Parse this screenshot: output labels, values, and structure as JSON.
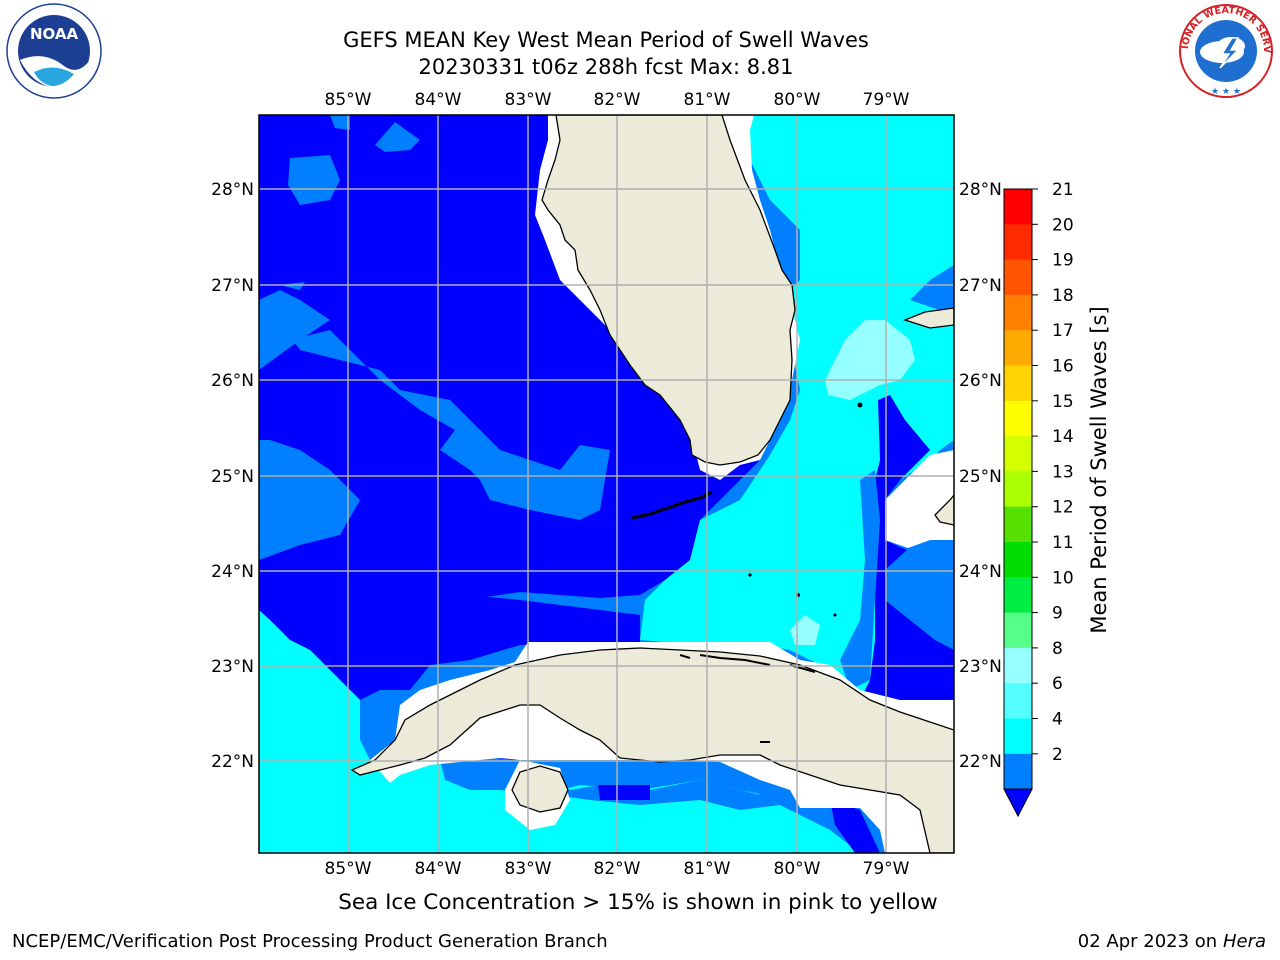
{
  "header": {
    "title_line1": "GEFS MEAN Key West Mean Period of Swell Waves",
    "title_line2": "20230331 t06z 288h fcst   Max: 8.81"
  },
  "map": {
    "lon_labels": [
      "85°W",
      "84°W",
      "83°W",
      "82°W",
      "81°W",
      "80°W",
      "79°W"
    ],
    "lat_labels": [
      "28°N",
      "27°N",
      "26°N",
      "25°N",
      "24°N",
      "23°N",
      "22°N"
    ],
    "colors": {
      "land": "#ecebd9",
      "band_2_4": "#0000ff",
      "band_4_6": "#0080ff",
      "band_6_8": "#00ffff",
      "band_8_9": "#96ffff",
      "grid": "#b0b0b0",
      "no_data": "#ffffff"
    }
  },
  "colorbar": {
    "label": "Mean Period of Swell Waves [s]",
    "ticks": [
      "21",
      "20",
      "19",
      "18",
      "17",
      "16",
      "15",
      "14",
      "13",
      "12",
      "11",
      "10",
      "9",
      "8",
      "6",
      "4",
      "2"
    ],
    "colors_top_to_bottom": [
      "#ff0000",
      "#ff2a00",
      "#ff5500",
      "#ff8000",
      "#ffaa00",
      "#ffd400",
      "#ffff00",
      "#d4ff00",
      "#aaff00",
      "#55e000",
      "#00dd00",
      "#00ee44",
      "#55ff88",
      "#96ffff",
      "#55ffff",
      "#00ffff",
      "#0080ff"
    ],
    "extend_color": "#0000ff"
  },
  "note": "Sea Ice Concentration > 15% is shown in pink to yellow",
  "footer": {
    "left": "NCEP/EMC/Verification Post Processing Product Generation Branch",
    "date": "02 Apr 2023 on ",
    "machine": "Hera"
  },
  "logos": {
    "noaa_text": "NOAA",
    "nws_text": "NATIONAL WEATHER SERVICE"
  }
}
